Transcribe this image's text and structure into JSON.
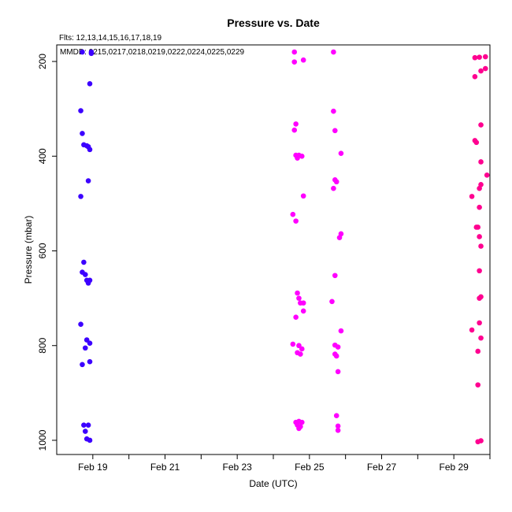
{
  "chart_data": {
    "type": "scatter",
    "title": "Pressure  vs. Date",
    "xlabel": "Date (UTC)",
    "ylabel": "Pressure (mbar)",
    "annotations": [
      "Flts: 12,13,14,15,16,17,18,19",
      "MMDD: 0215,0217,0218,0219,0222,0224,0225,0229"
    ],
    "x_ticks": [
      "Feb 19",
      "Feb 21",
      "Feb 23",
      "Feb 25",
      "Feb 27",
      "Feb 29"
    ],
    "x_tick_values": [
      "2016-02-19",
      "2016-02-21",
      "2016-02-23",
      "2016-02-25",
      "2016-02-27",
      "2016-02-29"
    ],
    "xlim": [
      "2016-02-18",
      "2016-03-01"
    ],
    "y_ticks": [
      "200",
      "400",
      "600",
      "800",
      "1000"
    ],
    "y_tick_values": [
      200,
      400,
      600,
      800,
      1000
    ],
    "ylim": [
      1030,
      165
    ],
    "y_reversed": true,
    "grid": false,
    "legend": "none",
    "series": [
      {
        "color": "#3c00ff",
        "points": [
          {
            "x": "2016-02-18 17:00",
            "y": 180
          },
          {
            "x": "2016-02-18 23:00",
            "y": 180
          },
          {
            "x": "2016-02-18 23:00",
            "y": 183
          },
          {
            "x": "2016-02-18 22:00",
            "y": 247
          },
          {
            "x": "2016-02-18 16:00",
            "y": 304
          },
          {
            "x": "2016-02-18 17:00",
            "y": 352
          },
          {
            "x": "2016-02-18 18:00",
            "y": 376
          },
          {
            "x": "2016-02-18 20:00",
            "y": 378
          },
          {
            "x": "2016-02-18 21:00",
            "y": 380
          },
          {
            "x": "2016-02-18 22:00",
            "y": 386
          },
          {
            "x": "2016-02-18 21:00",
            "y": 452
          },
          {
            "x": "2016-02-18 16:00",
            "y": 485
          },
          {
            "x": "2016-02-18 18:00",
            "y": 624
          },
          {
            "x": "2016-02-18 17:00",
            "y": 645
          },
          {
            "x": "2016-02-18 19:00",
            "y": 650
          },
          {
            "x": "2016-02-18 20:00",
            "y": 662
          },
          {
            "x": "2016-02-18 22:00",
            "y": 662
          },
          {
            "x": "2016-02-18 21:00",
            "y": 668
          },
          {
            "x": "2016-02-18 16:00",
            "y": 755
          },
          {
            "x": "2016-02-18 20:00",
            "y": 788
          },
          {
            "x": "2016-02-18 22:00",
            "y": 795
          },
          {
            "x": "2016-02-18 19:00",
            "y": 805
          },
          {
            "x": "2016-02-18 22:00",
            "y": 834
          },
          {
            "x": "2016-02-18 17:00",
            "y": 840
          },
          {
            "x": "2016-02-18 18:00",
            "y": 968
          },
          {
            "x": "2016-02-18 21:00",
            "y": 968
          },
          {
            "x": "2016-02-18 19:00",
            "y": 981
          },
          {
            "x": "2016-02-18 20:00",
            "y": 997
          },
          {
            "x": "2016-02-18 22:00",
            "y": 1000
          }
        ]
      },
      {
        "color": "#ff00ff",
        "points": [
          {
            "x": "2016-02-24 14:00",
            "y": 180
          },
          {
            "x": "2016-02-24 14:00",
            "y": 201
          },
          {
            "x": "2016-02-24 20:00",
            "y": 197
          },
          {
            "x": "2016-02-24 15:00",
            "y": 332
          },
          {
            "x": "2016-02-24 14:00",
            "y": 345
          },
          {
            "x": "2016-02-24 15:00",
            "y": 398
          },
          {
            "x": "2016-02-24 17:00",
            "y": 398
          },
          {
            "x": "2016-02-24 19:00",
            "y": 400
          },
          {
            "x": "2016-02-24 16:00",
            "y": 404
          },
          {
            "x": "2016-02-24 20:00",
            "y": 484
          },
          {
            "x": "2016-02-24 13:00",
            "y": 523
          },
          {
            "x": "2016-02-24 15:00",
            "y": 537
          },
          {
            "x": "2016-02-24 16:00",
            "y": 689
          },
          {
            "x": "2016-02-24 17:00",
            "y": 700
          },
          {
            "x": "2016-02-24 18:00",
            "y": 710
          },
          {
            "x": "2016-02-24 20:00",
            "y": 710
          },
          {
            "x": "2016-02-24 20:00",
            "y": 727
          },
          {
            "x": "2016-02-24 15:00",
            "y": 740
          },
          {
            "x": "2016-02-24 13:00",
            "y": 797
          },
          {
            "x": "2016-02-24 17:00",
            "y": 800
          },
          {
            "x": "2016-02-24 19:00",
            "y": 807
          },
          {
            "x": "2016-02-24 16:00",
            "y": 815
          },
          {
            "x": "2016-02-24 18:00",
            "y": 818
          },
          {
            "x": "2016-02-24 15:00",
            "y": 962
          },
          {
            "x": "2016-02-24 17:00",
            "y": 960
          },
          {
            "x": "2016-02-24 19:00",
            "y": 962
          },
          {
            "x": "2016-02-24 16:00",
            "y": 968
          },
          {
            "x": "2016-02-24 18:00",
            "y": 971
          },
          {
            "x": "2016-02-24 17:00",
            "y": 975
          },
          {
            "x": "2016-02-25 16:00",
            "y": 180
          },
          {
            "x": "2016-02-25 16:00",
            "y": 305
          },
          {
            "x": "2016-02-25 17:00",
            "y": 346
          },
          {
            "x": "2016-02-25 21:00",
            "y": 394
          },
          {
            "x": "2016-02-25 17:00",
            "y": 450
          },
          {
            "x": "2016-02-25 18:00",
            "y": 454
          },
          {
            "x": "2016-02-25 16:00",
            "y": 468
          },
          {
            "x": "2016-02-25 21:00",
            "y": 564
          },
          {
            "x": "2016-02-25 20:00",
            "y": 572
          },
          {
            "x": "2016-02-25 17:00",
            "y": 652
          },
          {
            "x": "2016-02-25 15:00",
            "y": 707
          },
          {
            "x": "2016-02-25 21:00",
            "y": 769
          },
          {
            "x": "2016-02-25 17:00",
            "y": 799
          },
          {
            "x": "2016-02-25 19:00",
            "y": 803
          },
          {
            "x": "2016-02-25 17:00",
            "y": 818
          },
          {
            "x": "2016-02-25 18:00",
            "y": 822
          },
          {
            "x": "2016-02-25 19:00",
            "y": 855
          },
          {
            "x": "2016-02-25 18:00",
            "y": 948
          },
          {
            "x": "2016-02-25 19:00",
            "y": 970
          },
          {
            "x": "2016-02-25 19:00",
            "y": 979
          }
        ]
      },
      {
        "color": "#ff0090",
        "points": [
          {
            "x": "2016-02-29 14:00",
            "y": 192
          },
          {
            "x": "2016-02-29 17:00",
            "y": 191
          },
          {
            "x": "2016-02-29 21:00",
            "y": 190
          },
          {
            "x": "2016-02-29 21:00",
            "y": 215
          },
          {
            "x": "2016-02-29 18:00",
            "y": 220
          },
          {
            "x": "2016-02-29 14:00",
            "y": 232
          },
          {
            "x": "2016-02-29 18:00",
            "y": 334
          },
          {
            "x": "2016-02-29 14:00",
            "y": 367
          },
          {
            "x": "2016-02-29 15:00",
            "y": 371
          },
          {
            "x": "2016-02-29 18:00",
            "y": 412
          },
          {
            "x": "2016-02-29 22:00",
            "y": 440
          },
          {
            "x": "2016-02-29 18:00",
            "y": 460
          },
          {
            "x": "2016-02-29 17:00",
            "y": 468
          },
          {
            "x": "2016-02-29 12:00",
            "y": 485
          },
          {
            "x": "2016-02-29 17:00",
            "y": 508
          },
          {
            "x": "2016-02-29 15:00",
            "y": 550
          },
          {
            "x": "2016-02-29 16:00",
            "y": 550
          },
          {
            "x": "2016-02-29 17:00",
            "y": 570
          },
          {
            "x": "2016-02-29 18:00",
            "y": 590
          },
          {
            "x": "2016-02-29 17:00",
            "y": 642
          },
          {
            "x": "2016-02-29 18:00",
            "y": 697
          },
          {
            "x": "2016-02-29 17:00",
            "y": 700
          },
          {
            "x": "2016-02-29 17:00",
            "y": 752
          },
          {
            "x": "2016-02-29 12:00",
            "y": 767
          },
          {
            "x": "2016-02-29 18:00",
            "y": 784
          },
          {
            "x": "2016-02-29 16:00",
            "y": 812
          },
          {
            "x": "2016-02-29 16:00",
            "y": 883
          },
          {
            "x": "2016-02-29 16:00",
            "y": 1003
          },
          {
            "x": "2016-02-29 18:00",
            "y": 1001
          }
        ]
      }
    ]
  }
}
